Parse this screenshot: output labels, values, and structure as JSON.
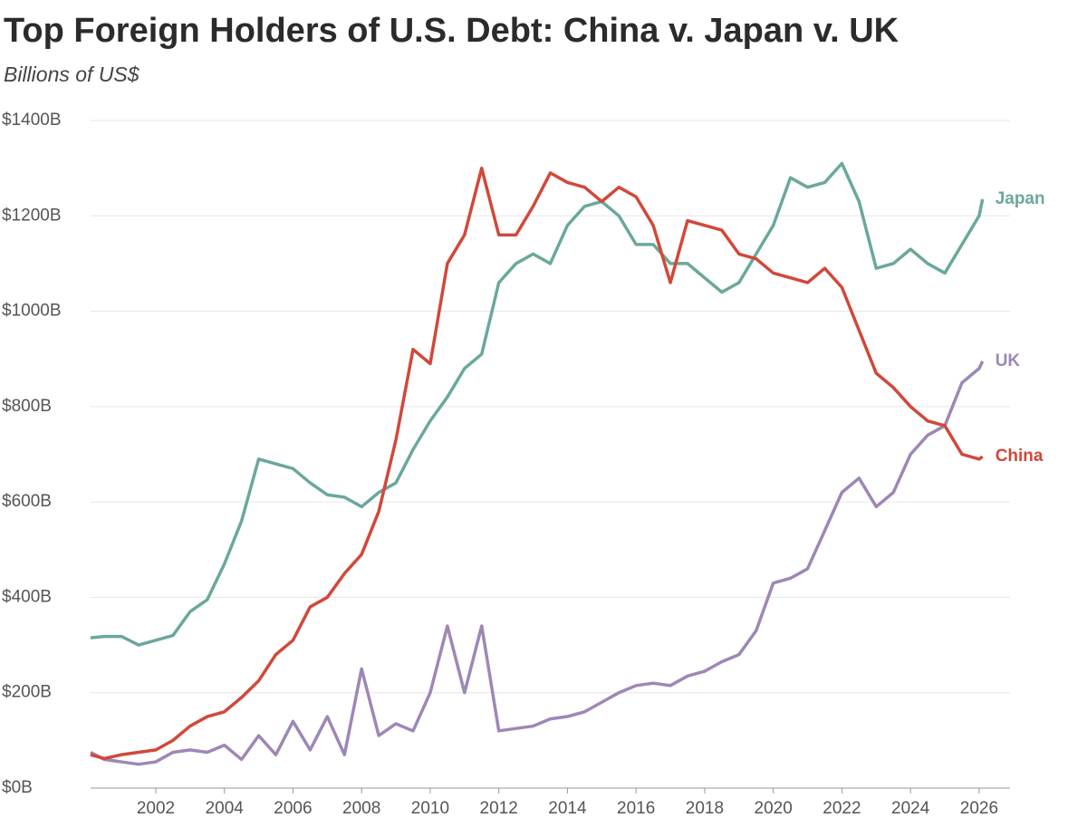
{
  "chart_data": {
    "type": "line",
    "title": "Top Foreign Holders of U.S. Debt: China v. Japan v. UK",
    "subtitle": "Billions of US$",
    "x": [
      2000.1,
      2000.5,
      2001,
      2001.5,
      2002,
      2002.5,
      2003,
      2003.5,
      2004,
      2004.5,
      2005,
      2005.5,
      2006,
      2006.5,
      2007,
      2007.5,
      2008,
      2008.5,
      2009,
      2009.5,
      2010,
      2010.5,
      2011,
      2011.5,
      2012,
      2012.5,
      2013,
      2013.5,
      2014,
      2014.5,
      2015,
      2015.5,
      2016,
      2016.5,
      2017,
      2017.5,
      2018,
      2018.5,
      2019,
      2019.5,
      2020,
      2020.5,
      2021,
      2021.5,
      2022,
      2022.5,
      2023,
      2023.5,
      2024,
      2024.5,
      2025,
      2025.5,
      2026,
      2026.1
    ],
    "series": [
      {
        "name": "Japan",
        "color": "#6aa89c",
        "values": [
          315,
          318,
          318,
          300,
          310,
          320,
          370,
          395,
          470,
          560,
          690,
          680,
          670,
          640,
          615,
          610,
          590,
          620,
          640,
          710,
          770,
          820,
          880,
          910,
          1060,
          1100,
          1120,
          1100,
          1180,
          1220,
          1230,
          1200,
          1140,
          1140,
          1100,
          1100,
          1070,
          1040,
          1060,
          1120,
          1180,
          1280,
          1260,
          1270,
          1310,
          1230,
          1090,
          1100,
          1130,
          1100,
          1080,
          1140,
          1200,
          1235
        ]
      },
      {
        "name": "UK",
        "color": "#9e87b5",
        "values": [
          75,
          60,
          55,
          50,
          55,
          75,
          80,
          75,
          90,
          60,
          110,
          70,
          140,
          80,
          150,
          70,
          250,
          110,
          135,
          120,
          200,
          340,
          200,
          340,
          120,
          125,
          130,
          145,
          150,
          160,
          180,
          200,
          215,
          220,
          215,
          235,
          245,
          265,
          280,
          330,
          430,
          440,
          460,
          540,
          620,
          650,
          590,
          620,
          700,
          740,
          760,
          850,
          880,
          895
        ]
      },
      {
        "name": "China",
        "color": "#d1483a",
        "values": [
          70,
          62,
          70,
          75,
          80,
          100,
          130,
          150,
          160,
          190,
          225,
          280,
          310,
          380,
          400,
          450,
          490,
          580,
          730,
          920,
          890,
          1100,
          1160,
          1300,
          1160,
          1160,
          1220,
          1290,
          1270,
          1260,
          1230,
          1260,
          1240,
          1180,
          1060,
          1190,
          1180,
          1170,
          1120,
          1110,
          1080,
          1070,
          1060,
          1090,
          1050,
          960,
          870,
          840,
          800,
          770,
          760,
          700,
          690,
          695
        ]
      }
    ],
    "xlim": [
      2000.1,
      2026.9
    ],
    "xticks": [
      2002,
      2004,
      2006,
      2008,
      2010,
      2012,
      2014,
      2016,
      2018,
      2020,
      2022,
      2024,
      2026
    ],
    "ylim": [
      0,
      1400
    ],
    "yticks": [
      {
        "value": 0,
        "label": "$0B"
      },
      {
        "value": 200,
        "label": "$200B"
      },
      {
        "value": 400,
        "label": "$400B"
      },
      {
        "value": 600,
        "label": "$600B"
      },
      {
        "value": 800,
        "label": "$800B"
      },
      {
        "value": 1000,
        "label": "$1000B"
      },
      {
        "value": 1200,
        "label": "$1200B"
      },
      {
        "value": 1400,
        "label": "$1400B"
      }
    ],
    "grid": true
  }
}
